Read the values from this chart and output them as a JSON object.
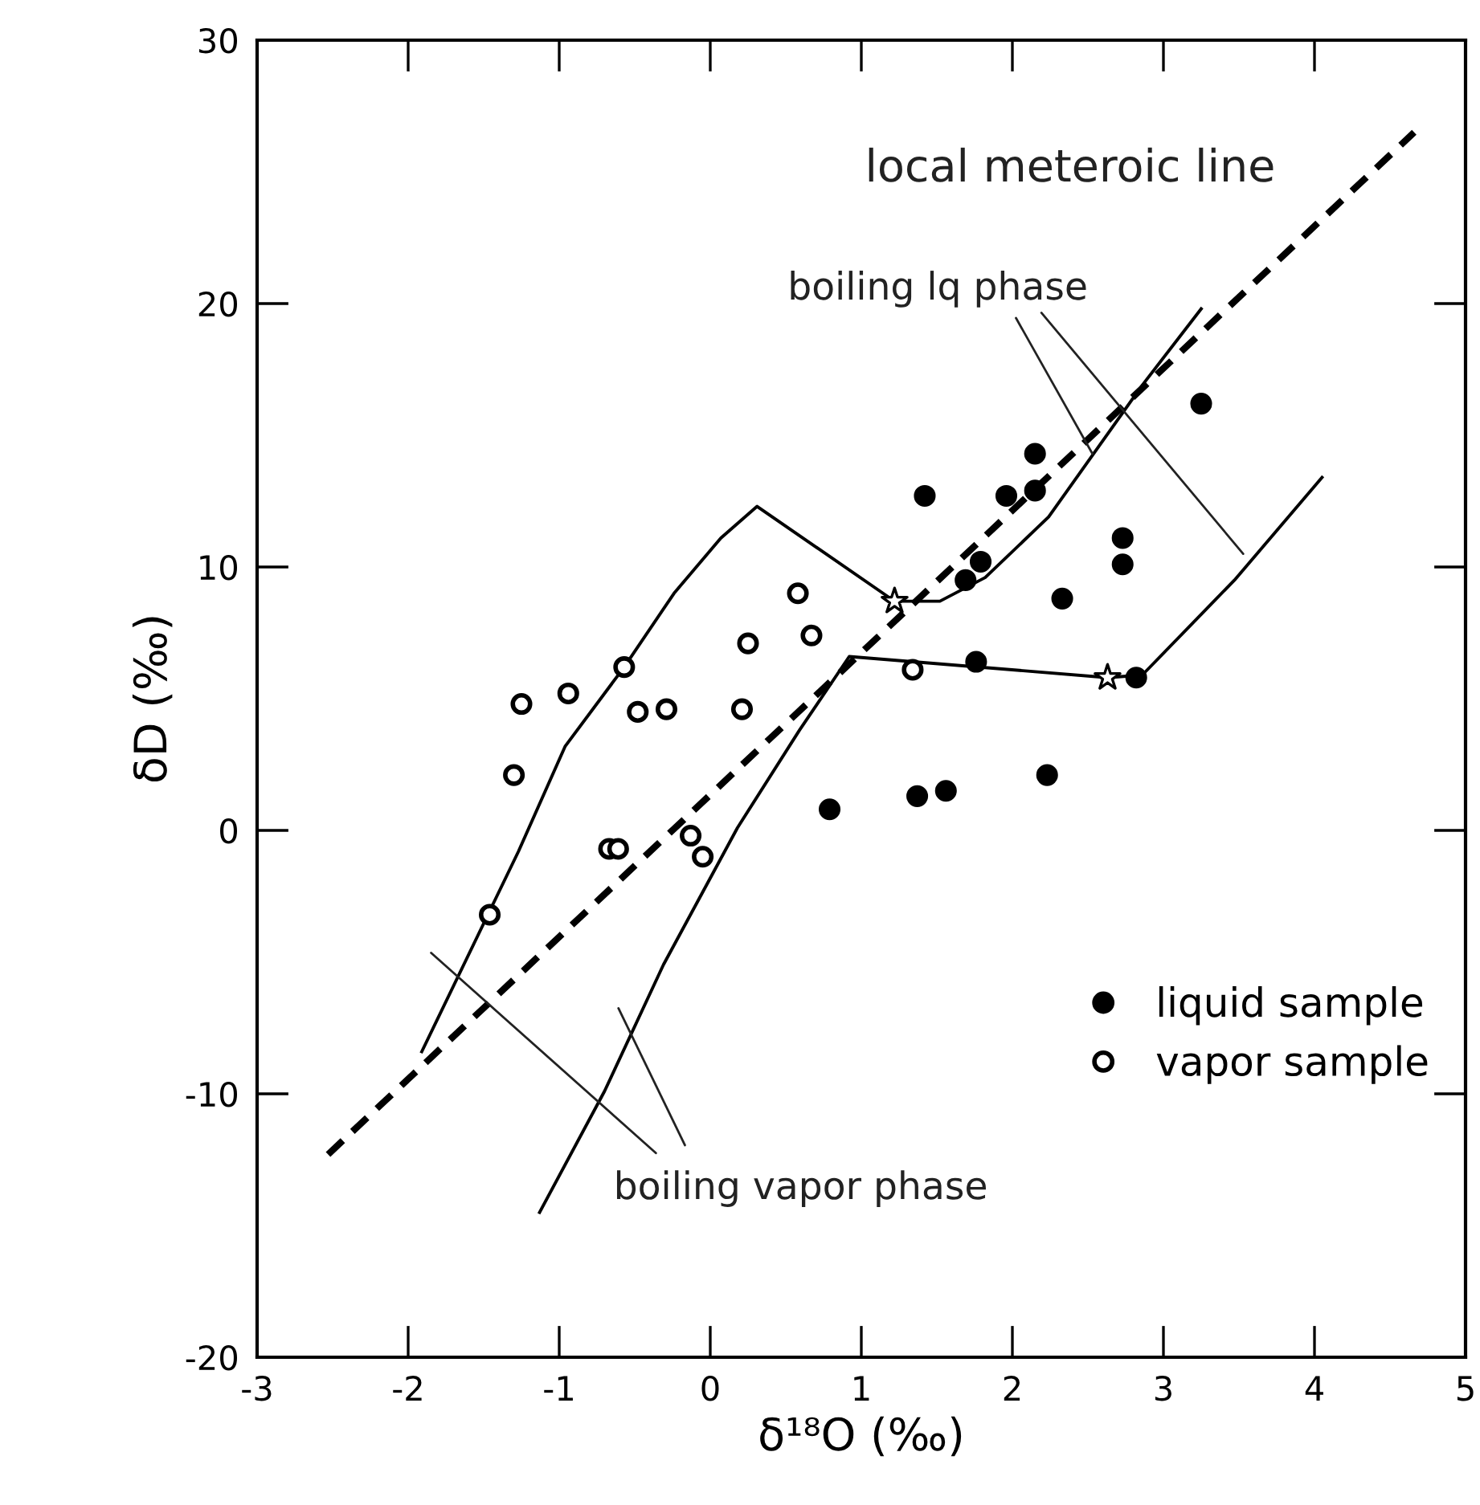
{
  "chart_data": {
    "type": "scatter",
    "xlabel": "δ¹⁸O (‰)",
    "ylabel": "δD (‰)",
    "xlim": [
      -3,
      5
    ],
    "xticks": [
      -3,
      -2,
      -1,
      0,
      1,
      2,
      3,
      4,
      5
    ],
    "ylim": [
      -20,
      30
    ],
    "yticks": [
      -20,
      -10,
      0,
      10,
      20,
      30
    ],
    "grid": false,
    "legend": "bottom right",
    "series": [
      {
        "name": "liquid sample",
        "marker": "circle",
        "color": "#000000",
        "x": [
          1.42,
          1.96,
          2.15,
          2.15,
          1.79,
          1.69,
          3.25,
          2.73,
          2.73,
          2.33,
          1.76,
          2.82,
          0.79,
          1.37,
          1.56,
          2.23
        ],
        "values": [
          12.7,
          12.7,
          14.3,
          12.9,
          10.2,
          9.5,
          16.2,
          11.1,
          10.1,
          8.8,
          6.4,
          5.8,
          0.8,
          1.3,
          1.5,
          2.1
        ]
      },
      {
        "name": "vapor sample",
        "marker": "circle",
        "color": "#000000",
        "x": [
          -1.46,
          -1.3,
          -1.25,
          -0.94,
          -0.57,
          -0.48,
          -0.29,
          -0.67,
          -0.61,
          -0.13,
          -0.05,
          0.21,
          0.25,
          0.58,
          0.67,
          1.34
        ],
        "values": [
          -3.2,
          2.1,
          4.8,
          5.2,
          6.2,
          4.5,
          4.6,
          -0.7,
          -0.7,
          -0.2,
          -1.0,
          4.6,
          7.1,
          9.0,
          7.4,
          6.1
        ]
      },
      {
        "type": "line",
        "line_style": "dashed",
        "color": "#000000",
        "x": [
          -2.53,
          4.66
        ],
        "values": [
          -12.3,
          26.5
        ]
      },
      {
        "type": "line",
        "line_style": "solid",
        "color": "#000000",
        "x": [
          -1.91,
          -1.27,
          -0.96,
          -0.57,
          -0.24,
          0.07,
          0.31,
          1.22
        ],
        "values": [
          -8.4,
          -0.8,
          3.2,
          6.2,
          9.0,
          11.1,
          12.3,
          8.7
        ]
      },
      {
        "type": "line",
        "line_style": "solid",
        "color": "#000000",
        "x": [
          1.22,
          1.52,
          1.82,
          2.24,
          2.86,
          3.25
        ],
        "values": [
          8.7,
          8.7,
          9.6,
          11.9,
          16.9,
          19.8
        ]
      },
      {
        "type": "line",
        "line_style": "solid",
        "color": "#000000",
        "x": [
          -1.13,
          -0.7,
          -0.31,
          0.18,
          0.59,
          0.92,
          2.63,
          2.86,
          3.47,
          4.05
        ],
        "values": [
          -14.5,
          -9.9,
          -5.1,
          0.1,
          3.8,
          6.6,
          5.8,
          5.9,
          9.5,
          13.4
        ]
      },
      {
        "marker": "star",
        "color": "#000000",
        "x": [
          1.22,
          2.63
        ],
        "values": [
          8.7,
          5.8
        ]
      }
    ],
    "annotations": [
      "local meteroic line",
      {
        "text": "boiling lq phase",
        "x": 2.53,
        "y": 14.3
      },
      "boiling vapor phase"
    ]
  }
}
